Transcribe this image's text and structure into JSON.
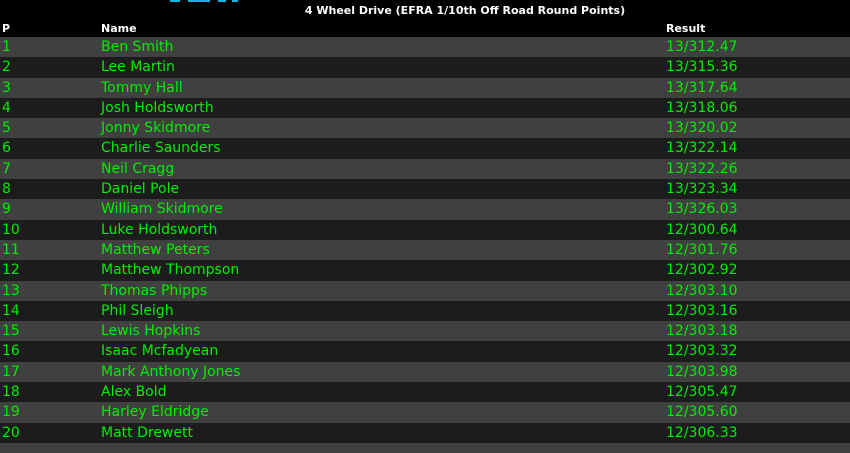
{
  "title": "4 Wheel Drive (EFRA 1/10th Off Road Round Points)",
  "columns": {
    "p": "P",
    "name": "Name",
    "result": "Result"
  },
  "rows": [
    {
      "p": "1",
      "name": "Ben Smith",
      "result": "13/312.47"
    },
    {
      "p": "2",
      "name": "Lee Martin",
      "result": "13/315.36"
    },
    {
      "p": "3",
      "name": "Tommy Hall",
      "result": "13/317.64"
    },
    {
      "p": "4",
      "name": "Josh Holdsworth",
      "result": "13/318.06"
    },
    {
      "p": "5",
      "name": "Jonny Skidmore",
      "result": "13/320.02"
    },
    {
      "p": "6",
      "name": "Charlie Saunders",
      "result": "13/322.14"
    },
    {
      "p": "7",
      "name": "Neil Cragg",
      "result": "13/322.26"
    },
    {
      "p": "8",
      "name": "Daniel Pole",
      "result": "13/323.34"
    },
    {
      "p": "9",
      "name": "William Skidmore",
      "result": "13/326.03"
    },
    {
      "p": "10",
      "name": "Luke Holdsworth",
      "result": "12/300.64"
    },
    {
      "p": "11",
      "name": "Matthew Peters",
      "result": "12/301.76"
    },
    {
      "p": "12",
      "name": "Matthew Thompson",
      "result": "12/302.92"
    },
    {
      "p": "13",
      "name": "Thomas Phipps",
      "result": "12/303.10"
    },
    {
      "p": "14",
      "name": "Phil Sleigh",
      "result": "12/303.16"
    },
    {
      "p": "15",
      "name": "Lewis Hopkins",
      "result": "12/303.18"
    },
    {
      "p": "16",
      "name": "Isaac Mcfadyean",
      "result": "12/303.32"
    },
    {
      "p": "17",
      "name": "Mark Anthony Jones",
      "result": "12/303.98"
    },
    {
      "p": "18",
      "name": "Alex Bold",
      "result": "12/305.47"
    },
    {
      "p": "19",
      "name": "Harley Eldridge",
      "result": "12/305.60"
    },
    {
      "p": "20",
      "name": "Matt Drewett",
      "result": "12/306.33"
    }
  ],
  "colors": {
    "text": "#00ee00",
    "row_light": "#404040",
    "row_dark": "#1c1c1c",
    "header": "#ffffff"
  }
}
